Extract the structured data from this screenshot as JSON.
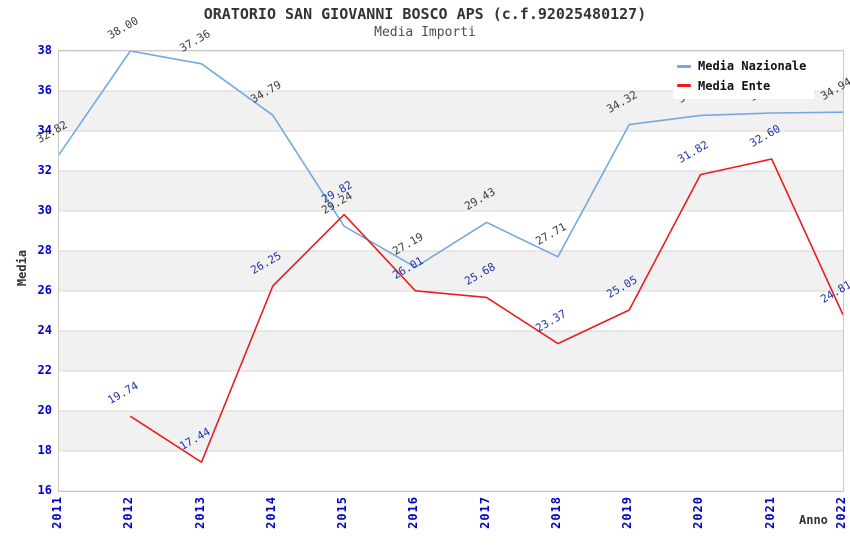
{
  "chart_data": {
    "type": "line",
    "title": "ORATORIO SAN GIOVANNI BOSCO APS (c.f.92025480127)",
    "subtitle": "Media Importi",
    "xlabel": "Anno",
    "ylabel": "Media",
    "ylim": [
      16,
      38
    ],
    "ytick_step": 2,
    "y_ticks": [
      38,
      36,
      34,
      32,
      30,
      28,
      26,
      24,
      22,
      20,
      18,
      16
    ],
    "x_ticks": [
      "2011",
      "2012",
      "2013",
      "2014",
      "2015",
      "2016",
      "2017",
      "2018",
      "2019",
      "2020",
      "2021",
      "2022"
    ],
    "grid": true,
    "background_bands": "alternating white / light-gray horizontal stripes per 2-unit interval",
    "legend_position": "top-right",
    "series": [
      {
        "name": "Media Nazionale",
        "color": "#74a9df",
        "label_color": "#3c3c3c",
        "x": [
          2011,
          2012,
          2013,
          2014,
          2015,
          2016,
          2017,
          2018,
          2019,
          2020,
          2021,
          2022
        ],
        "values": [
          32.82,
          38.0,
          37.36,
          34.79,
          29.24,
          27.19,
          29.43,
          27.71,
          34.32,
          34.78,
          34.9,
          34.94
        ],
        "labels": [
          "32.82",
          "38.00",
          "37.36",
          "34.79",
          "29.24",
          "27.19",
          "29.43",
          "27.71",
          "34.32",
          "34.78",
          "34.90",
          "34.94"
        ]
      },
      {
        "name": "Media Ente",
        "color": "#ea1e1e",
        "label_color": "#2233aa",
        "x": [
          2012,
          2013,
          2014,
          2015,
          2016,
          2017,
          2018,
          2019,
          2020,
          2021,
          2022
        ],
        "values": [
          19.74,
          17.44,
          26.25,
          29.82,
          26.01,
          25.68,
          23.37,
          25.05,
          31.82,
          32.6,
          24.81
        ],
        "labels": [
          "19.74",
          "17.44",
          "26.25",
          "29.82",
          "26.01",
          "25.68",
          "23.37",
          "25.05",
          "31.82",
          "32.60",
          "24.81"
        ]
      }
    ]
  },
  "colors": {
    "axis_tick_label": "#0202cc",
    "grid_line": "#d8d8d8",
    "plot_border": "#c9c9c9",
    "band_gray": "#f1f1f1",
    "title_text": "#333333",
    "subtitle_text": "#4d4d4d",
    "legend_text": "#111111"
  }
}
